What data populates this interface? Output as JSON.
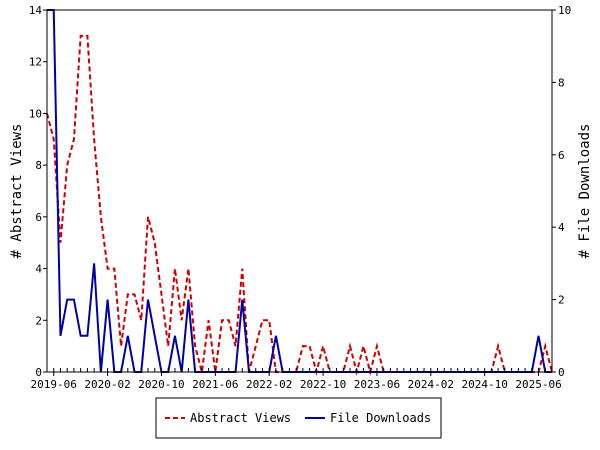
{
  "chart_data": {
    "type": "line",
    "title": "",
    "xlabel": "",
    "ylabel_left": "# Abstract Views",
    "ylabel_right": "# File Downloads",
    "ylim_left": [
      0,
      14
    ],
    "ylim_right": [
      0,
      10
    ],
    "yticks_left": [
      0,
      2,
      4,
      6,
      8,
      10,
      12,
      14
    ],
    "yticks_right": [
      0,
      2,
      4,
      6,
      8,
      10
    ],
    "xlim": [
      "2019-05",
      "2025-08"
    ],
    "xtick_labels": [
      "2019-06",
      "2020-02",
      "2020-10",
      "2021-06",
      "2022-02",
      "2022-10",
      "2023-06",
      "2024-02",
      "2024-10",
      "2025-06"
    ],
    "x": [
      "2019-05",
      "2019-06",
      "2019-07",
      "2019-08",
      "2019-09",
      "2019-10",
      "2019-11",
      "2019-12",
      "2020-01",
      "2020-02",
      "2020-03",
      "2020-04",
      "2020-05",
      "2020-06",
      "2020-07",
      "2020-08",
      "2020-09",
      "2020-10",
      "2020-11",
      "2020-12",
      "2021-01",
      "2021-02",
      "2021-03",
      "2021-04",
      "2021-05",
      "2021-06",
      "2021-07",
      "2021-08",
      "2021-09",
      "2021-10",
      "2021-11",
      "2021-12",
      "2022-01",
      "2022-02",
      "2022-03",
      "2022-04",
      "2022-05",
      "2022-06",
      "2022-07",
      "2022-08",
      "2022-09",
      "2022-10",
      "2022-11",
      "2022-12",
      "2023-01",
      "2023-02",
      "2023-03",
      "2023-04",
      "2023-05",
      "2023-06",
      "2023-07",
      "2023-08",
      "2023-09",
      "2023-10",
      "2023-11",
      "2023-12",
      "2024-01",
      "2024-02",
      "2024-03",
      "2024-04",
      "2024-05",
      "2024-06",
      "2024-07",
      "2024-08",
      "2024-09",
      "2024-10",
      "2024-11",
      "2024-12",
      "2025-01",
      "2025-02",
      "2025-03",
      "2025-04",
      "2025-05",
      "2025-06",
      "2025-07",
      "2025-08"
    ],
    "series": [
      {
        "name": "Abstract Views",
        "axis": "left",
        "color": "#cc0000",
        "dash": true,
        "values": [
          10,
          9,
          5,
          8,
          9,
          13,
          13,
          9,
          6,
          4,
          4,
          1,
          3,
          3,
          2,
          6,
          5,
          3,
          1,
          4,
          2,
          4,
          1,
          0,
          2,
          0,
          2,
          2,
          1,
          4,
          0,
          1,
          2,
          2,
          0,
          0,
          0,
          0,
          1,
          1,
          0,
          1,
          0,
          0,
          0,
          1,
          0,
          1,
          0,
          1,
          0,
          0,
          0,
          0,
          0,
          0,
          0,
          0,
          0,
          0,
          0,
          0,
          0,
          0,
          0,
          0,
          0,
          1,
          0,
          0,
          0,
          0,
          0,
          0,
          1,
          0
        ]
      },
      {
        "name": "File Downloads",
        "axis": "right",
        "color": "#0000aa",
        "dash": false,
        "values": [
          10,
          10,
          1,
          2,
          2,
          1,
          1,
          3,
          0,
          2,
          0,
          0,
          1,
          0,
          0,
          2,
          1,
          0,
          0,
          1,
          0,
          2,
          0,
          0,
          0,
          0,
          0,
          0,
          0,
          2,
          0,
          0,
          0,
          0,
          1,
          0,
          0,
          0,
          0,
          0,
          0,
          0,
          0,
          0,
          0,
          0,
          0,
          0,
          0,
          0,
          0,
          0,
          0,
          0,
          0,
          0,
          0,
          0,
          0,
          0,
          0,
          0,
          0,
          0,
          0,
          0,
          0,
          0,
          0,
          0,
          0,
          0,
          0,
          1,
          0,
          0
        ]
      }
    ],
    "grid": false,
    "legend_position": "bottom-center"
  }
}
